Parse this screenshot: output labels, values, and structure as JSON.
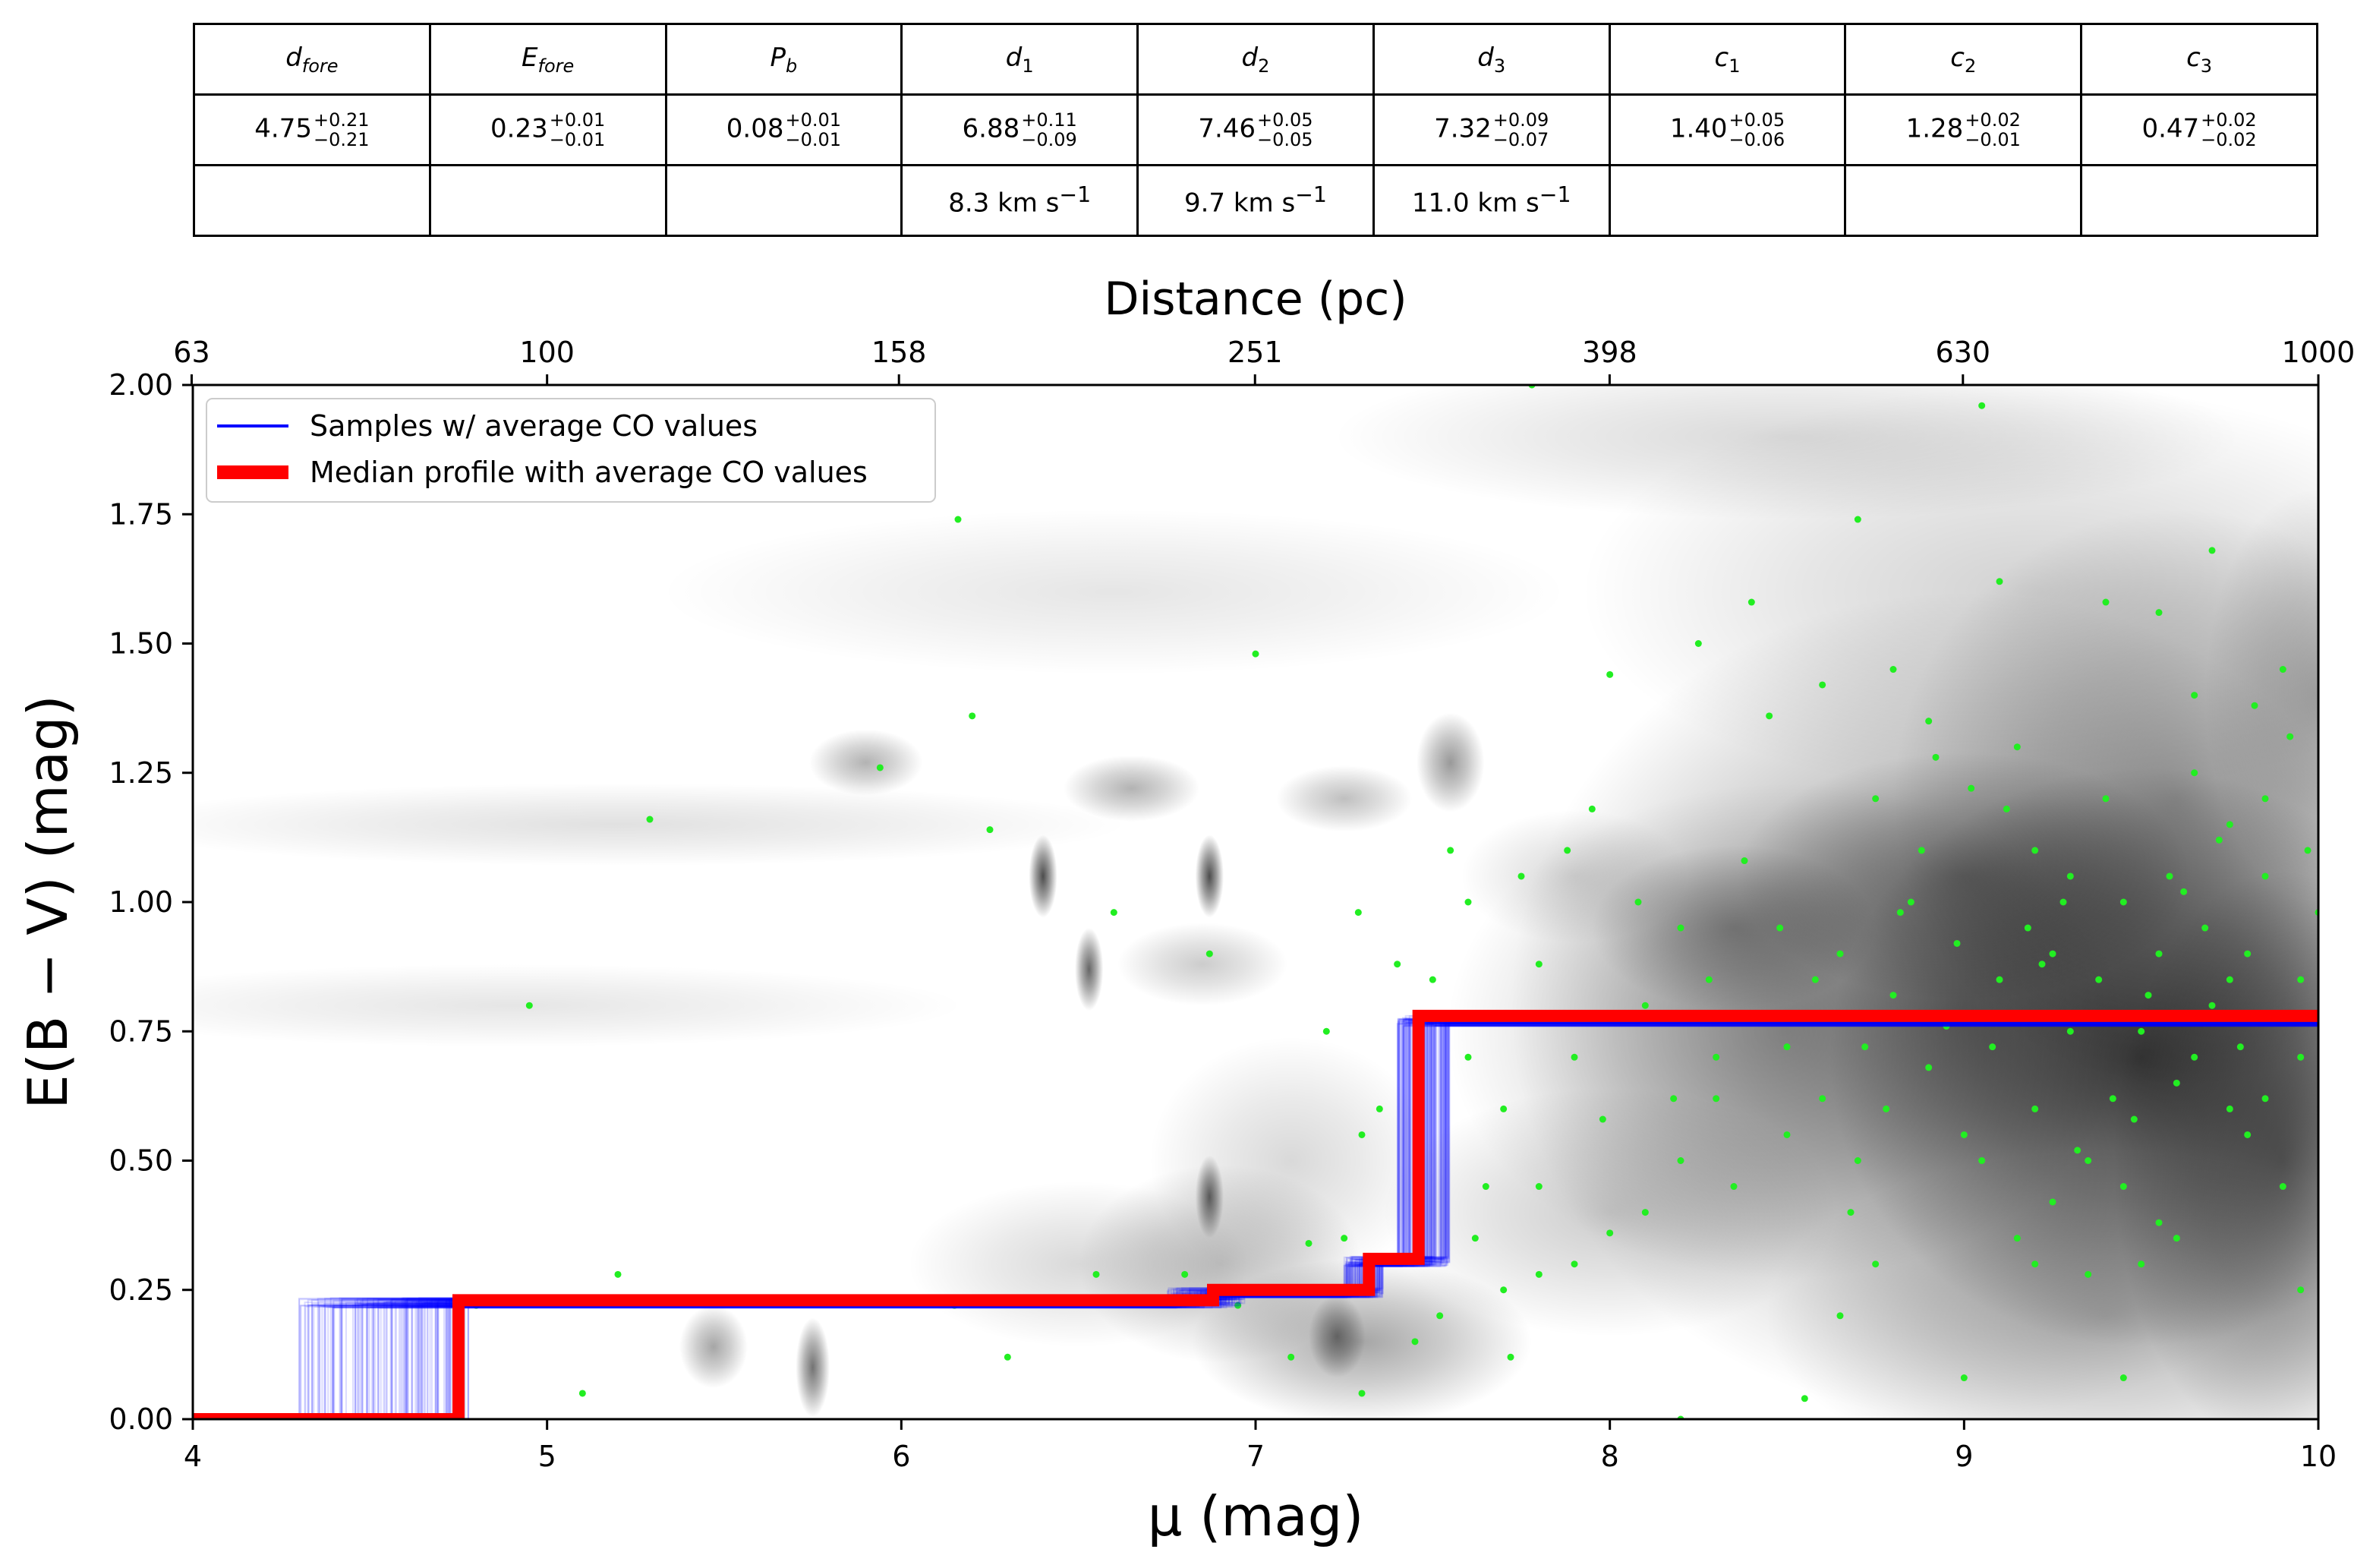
{
  "table": {
    "headers": [
      {
        "base": "d",
        "sub": "fore"
      },
      {
        "base": "E",
        "sub": "fore"
      },
      {
        "base": "P",
        "sub": "b"
      },
      {
        "base": "d",
        "sub": "1"
      },
      {
        "base": "d",
        "sub": "2"
      },
      {
        "base": "d",
        "sub": "3"
      },
      {
        "base": "c",
        "sub": "1"
      },
      {
        "base": "c",
        "sub": "2"
      },
      {
        "base": "c",
        "sub": "3"
      }
    ],
    "values": [
      {
        "val": "4.75",
        "plus": "+0.21",
        "minus": "−0.21"
      },
      {
        "val": "0.23",
        "plus": "+0.01",
        "minus": "−0.01"
      },
      {
        "val": "0.08",
        "plus": "+0.01",
        "minus": "−0.01"
      },
      {
        "val": "6.88",
        "plus": "+0.11",
        "minus": "−0.09"
      },
      {
        "val": "7.46",
        "plus": "+0.05",
        "minus": "−0.05"
      },
      {
        "val": "7.32",
        "plus": "+0.09",
        "minus": "−0.07"
      },
      {
        "val": "1.40",
        "plus": "+0.05",
        "minus": "−0.06"
      },
      {
        "val": "1.28",
        "plus": "+0.02",
        "minus": "−0.01"
      },
      {
        "val": "0.47",
        "plus": "+0.02",
        "minus": "−0.02"
      }
    ],
    "velocities": [
      "",
      "",
      "",
      "8.3 km s",
      "9.7 km s",
      "11.0 km s",
      "",
      "",
      ""
    ],
    "velocity_exp": "−1"
  },
  "chart_data": {
    "type": "line",
    "xlabel": "μ (mag)",
    "ylabel": "E(B − V) (mag)",
    "top_xlabel": "Distance (pc)",
    "xlim": [
      4,
      10
    ],
    "ylim": [
      0,
      2
    ],
    "x_ticks": [
      "4",
      "5",
      "6",
      "7",
      "8",
      "9",
      "10"
    ],
    "y_ticks": [
      "0.00",
      "0.25",
      "0.50",
      "0.75",
      "1.00",
      "1.25",
      "1.50",
      "1.75",
      "2.00"
    ],
    "top_ticks": [
      "63",
      "100",
      "158",
      "251",
      "398",
      "630",
      "1000"
    ],
    "legend_position": "top-left",
    "legend": [
      {
        "label": "Samples  w/ average CO values",
        "color": "#0000ff"
      },
      {
        "label": "Median profile with average CO values",
        "color": "#ff0000"
      }
    ],
    "colors": {
      "samples": "#0000ff",
      "median": "#ff0000",
      "stars": "#22ee22",
      "density": "#000000"
    },
    "series": [
      {
        "name": "Median profile with average CO values",
        "x": [
          4.0,
          4.75,
          4.75,
          6.88,
          6.88,
          7.32,
          7.32,
          7.46,
          7.46,
          10.0
        ],
        "y": [
          0.0,
          0.0,
          0.23,
          0.23,
          0.25,
          0.25,
          0.31,
          0.31,
          0.78,
          0.78
        ]
      }
    ],
    "samples": {
      "name": "Samples  w/ average CO values",
      "count": 140,
      "d_fore": [
        4.3,
        4.78
      ],
      "e_fore": [
        0.215,
        0.235
      ],
      "d1": [
        6.75,
        6.97
      ],
      "d2": [
        7.4,
        7.55
      ],
      "d3": [
        7.25,
        7.36
      ],
      "plateau": [
        0.76,
        0.78
      ]
    },
    "density_blobs": [
      {
        "x": 9.5,
        "y": 0.7,
        "sx": 0.55,
        "sy": 0.35,
        "a": 0.7
      },
      {
        "x": 9.0,
        "y": 0.8,
        "sx": 0.8,
        "sy": 0.5,
        "a": 0.45
      },
      {
        "x": 8.5,
        "y": 0.75,
        "sx": 0.6,
        "sy": 0.3,
        "a": 0.3
      },
      {
        "x": 9.6,
        "y": 1.2,
        "sx": 0.5,
        "sy": 0.35,
        "a": 0.35
      },
      {
        "x": 9.4,
        "y": 0.2,
        "sx": 0.6,
        "sy": 0.2,
        "a": 0.3
      },
      {
        "x": 9.2,
        "y": 1.6,
        "sx": 0.8,
        "sy": 0.25,
        "a": 0.18
      },
      {
        "x": 8.5,
        "y": 1.9,
        "sx": 0.8,
        "sy": 0.1,
        "a": 0.15
      },
      {
        "x": 7.3,
        "y": 0.15,
        "sx": 0.3,
        "sy": 0.1,
        "a": 0.35
      },
      {
        "x": 6.9,
        "y": 0.3,
        "sx": 0.25,
        "sy": 0.12,
        "a": 0.25
      },
      {
        "x": 5.2,
        "y": 1.15,
        "sx": 0.9,
        "sy": 0.05,
        "a": 0.12
      },
      {
        "x": 4.9,
        "y": 0.8,
        "sx": 0.8,
        "sy": 0.05,
        "a": 0.1
      },
      {
        "x": 6.6,
        "y": 1.6,
        "sx": 0.8,
        "sy": 0.1,
        "a": 0.1
      },
      {
        "x": 5.9,
        "y": 1.27,
        "sx": 0.1,
        "sy": 0.04,
        "a": 0.3
      },
      {
        "x": 6.65,
        "y": 1.22,
        "sx": 0.12,
        "sy": 0.04,
        "a": 0.3
      },
      {
        "x": 7.25,
        "y": 1.2,
        "sx": 0.12,
        "sy": 0.04,
        "a": 0.25
      },
      {
        "x": 7.55,
        "y": 1.27,
        "sx": 0.06,
        "sy": 0.06,
        "a": 0.4
      },
      {
        "x": 7.1,
        "y": 0.5,
        "sx": 0.25,
        "sy": 0.15,
        "a": 0.15
      },
      {
        "x": 8.0,
        "y": 0.4,
        "sx": 0.4,
        "sy": 0.15,
        "a": 0.2
      },
      {
        "x": 7.9,
        "y": 1.05,
        "sx": 0.2,
        "sy": 0.08,
        "a": 0.15
      },
      {
        "x": 6.85,
        "y": 0.88,
        "sx": 0.15,
        "sy": 0.05,
        "a": 0.2
      },
      {
        "x": 9.0,
        "y": 1.05,
        "sx": 0.4,
        "sy": 0.15,
        "a": 0.35
      },
      {
        "x": 8.35,
        "y": 0.95,
        "sx": 0.25,
        "sy": 0.1,
        "a": 0.3
      },
      {
        "x": 9.9,
        "y": 0.5,
        "sx": 0.3,
        "sy": 0.35,
        "a": 0.5
      },
      {
        "x": 10.0,
        "y": 1.4,
        "sx": 0.2,
        "sy": 0.25,
        "a": 0.25
      },
      {
        "x": 5.47,
        "y": 0.14,
        "sx": 0.06,
        "sy": 0.05,
        "a": 0.35
      },
      {
        "x": 5.75,
        "y": 0.1,
        "sx": 0.03,
        "sy": 0.06,
        "a": 0.55
      },
      {
        "x": 6.4,
        "y": 1.05,
        "sx": 0.025,
        "sy": 0.05,
        "a": 0.7
      },
      {
        "x": 6.87,
        "y": 1.05,
        "sx": 0.025,
        "sy": 0.05,
        "a": 0.7
      },
      {
        "x": 6.53,
        "y": 0.87,
        "sx": 0.025,
        "sy": 0.05,
        "a": 0.6
      },
      {
        "x": 6.87,
        "y": 0.43,
        "sx": 0.025,
        "sy": 0.05,
        "a": 0.6
      },
      {
        "x": 7.23,
        "y": 0.16,
        "sx": 0.05,
        "sy": 0.05,
        "a": 0.45
      },
      {
        "x": 6.5,
        "y": 0.3,
        "sx": 0.3,
        "sy": 0.1,
        "a": 0.15
      }
    ],
    "stars": [
      [
        4.95,
        0.8
      ],
      [
        5.29,
        1.16
      ],
      [
        5.2,
        0.28
      ],
      [
        5.94,
        1.26
      ],
      [
        6.16,
        1.74
      ],
      [
        6.2,
        1.36
      ],
      [
        6.25,
        1.14
      ],
      [
        6.6,
        0.98
      ],
      [
        6.87,
        0.9
      ],
      [
        7.0,
        1.48
      ],
      [
        7.29,
        0.98
      ],
      [
        7.2,
        0.75
      ],
      [
        7.3,
        0.55
      ],
      [
        7.4,
        0.88
      ],
      [
        7.5,
        0.85
      ],
      [
        7.6,
        0.7
      ],
      [
        7.7,
        0.6
      ],
      [
        7.78,
        2.0
      ],
      [
        7.8,
        0.88
      ],
      [
        7.9,
        0.7
      ],
      [
        7.95,
        1.18
      ],
      [
        8.0,
        1.44
      ],
      [
        8.1,
        0.8
      ],
      [
        8.2,
        0.95
      ],
      [
        8.25,
        1.5
      ],
      [
        8.3,
        0.7
      ],
      [
        8.4,
        1.58
      ],
      [
        8.45,
        1.36
      ],
      [
        8.5,
        0.55
      ],
      [
        8.55,
        0.04
      ],
      [
        8.6,
        1.42
      ],
      [
        8.65,
        0.9
      ],
      [
        8.7,
        1.74
      ],
      [
        8.75,
        1.2
      ],
      [
        8.8,
        1.45
      ],
      [
        8.85,
        1.0
      ],
      [
        8.9,
        1.35
      ],
      [
        8.95,
        0.76
      ],
      [
        9.0,
        0.08
      ],
      [
        9.05,
        1.96
      ],
      [
        9.1,
        1.62
      ],
      [
        9.15,
        1.3
      ],
      [
        9.2,
        1.1
      ],
      [
        9.25,
        0.9
      ],
      [
        9.3,
        1.05
      ],
      [
        9.35,
        0.5
      ],
      [
        9.4,
        1.58
      ],
      [
        9.45,
        0.08
      ],
      [
        9.5,
        0.3
      ],
      [
        9.55,
        1.56
      ],
      [
        9.6,
        0.35
      ],
      [
        9.65,
        1.4
      ],
      [
        9.7,
        1.68
      ],
      [
        9.75,
        0.6
      ],
      [
        9.8,
        0.9
      ],
      [
        9.85,
        1.2
      ],
      [
        9.9,
        1.45
      ],
      [
        9.95,
        0.7
      ],
      [
        10.0,
        0.98
      ],
      [
        9.5,
        0.75
      ],
      [
        9.6,
        0.65
      ],
      [
        9.7,
        0.8
      ],
      [
        9.8,
        0.55
      ],
      [
        9.9,
        0.45
      ],
      [
        9.45,
        1.0
      ],
      [
        9.55,
        0.9
      ],
      [
        9.65,
        0.7
      ],
      [
        9.75,
        0.85
      ],
      [
        9.85,
        0.62
      ],
      [
        9.95,
        0.85
      ],
      [
        9.3,
        0.75
      ],
      [
        9.2,
        0.6
      ],
      [
        9.1,
        0.85
      ],
      [
        9.0,
        0.55
      ],
      [
        8.9,
        0.68
      ],
      [
        8.8,
        0.82
      ],
      [
        8.7,
        0.5
      ],
      [
        8.6,
        0.62
      ],
      [
        8.5,
        0.72
      ],
      [
        8.4,
        0.78
      ],
      [
        8.3,
        0.62
      ],
      [
        8.2,
        0.5
      ],
      [
        8.1,
        0.4
      ],
      [
        8.0,
        0.36
      ],
      [
        7.9,
        0.3
      ],
      [
        7.8,
        0.28
      ],
      [
        7.7,
        0.25
      ],
      [
        7.65,
        0.45
      ],
      [
        7.6,
        1.0
      ],
      [
        7.55,
        1.1
      ],
      [
        9.35,
        0.28
      ],
      [
        9.45,
        0.45
      ],
      [
        9.55,
        0.38
      ],
      [
        9.25,
        0.42
      ],
      [
        9.15,
        0.35
      ],
      [
        9.05,
        0.5
      ],
      [
        9.95,
        0.25
      ],
      [
        9.85,
        1.05
      ],
      [
        9.75,
        1.15
      ],
      [
        9.65,
        1.25
      ],
      [
        9.4,
        1.2
      ],
      [
        9.2,
        0.3
      ],
      [
        8.75,
        0.3
      ],
      [
        8.65,
        0.2
      ],
      [
        8.35,
        0.45
      ],
      [
        7.35,
        0.6
      ],
      [
        7.15,
        0.34
      ],
      [
        6.95,
        0.22
      ],
      [
        6.8,
        0.28
      ],
      [
        7.05,
        0.25
      ],
      [
        7.25,
        0.35
      ],
      [
        9.97,
        1.1
      ],
      [
        9.88,
        0.78
      ],
      [
        9.78,
        0.72
      ],
      [
        9.68,
        0.95
      ],
      [
        9.58,
        1.05
      ],
      [
        9.48,
        0.58
      ],
      [
        9.38,
        0.85
      ],
      [
        9.28,
        1.0
      ],
      [
        9.18,
        0.95
      ],
      [
        9.08,
        0.72
      ],
      [
        8.98,
        0.92
      ],
      [
        8.88,
        1.1
      ],
      [
        8.78,
        0.6
      ],
      [
        8.68,
        0.4
      ],
      [
        8.58,
        0.85
      ],
      [
        8.48,
        0.95
      ],
      [
        8.38,
        1.08
      ],
      [
        8.28,
        0.85
      ],
      [
        8.18,
        0.62
      ],
      [
        8.08,
        1.0
      ],
      [
        7.98,
        0.58
      ],
      [
        7.88,
        1.1
      ],
      [
        7.8,
        0.45
      ],
      [
        7.75,
        1.05
      ],
      [
        7.62,
        0.35
      ],
      [
        7.52,
        0.2
      ],
      [
        7.45,
        0.15
      ],
      [
        7.72,
        0.12
      ],
      [
        5.1,
        0.05
      ],
      [
        4.8,
        0.22
      ],
      [
        6.15,
        0.22
      ],
      [
        6.3,
        0.12
      ],
      [
        6.55,
        0.28
      ],
      [
        7.1,
        0.12
      ],
      [
        7.3,
        0.05
      ],
      [
        8.2,
        0.0
      ],
      [
        9.92,
        1.32
      ],
      [
        9.82,
        1.38
      ],
      [
        9.72,
        1.12
      ],
      [
        9.62,
        1.02
      ],
      [
        9.52,
        0.82
      ],
      [
        9.42,
        0.62
      ],
      [
        9.32,
        0.52
      ],
      [
        9.22,
        0.88
      ],
      [
        9.12,
        1.18
      ],
      [
        9.02,
        1.22
      ],
      [
        8.92,
        1.28
      ],
      [
        8.82,
        0.98
      ],
      [
        8.72,
        0.72
      ],
      [
        8.62,
        0.78
      ]
    ]
  }
}
